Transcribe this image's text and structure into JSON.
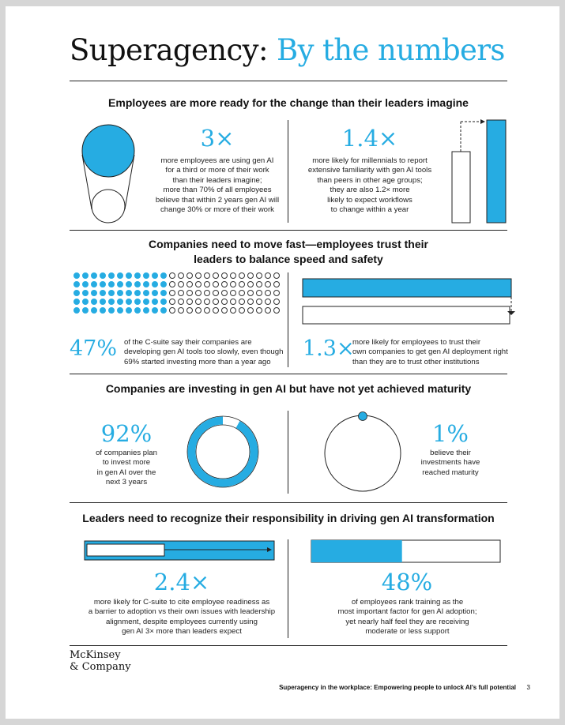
{
  "header": {
    "title_main": "Superagency:",
    "title_accent": "By the numbers"
  },
  "sections": [
    {
      "heading": "Employees are more ready for the change than their leaders imagine",
      "left": {
        "stat": "3×",
        "lines": [
          "more employees are using gen AI",
          "for a third or more of their work",
          "than their leaders imagine;",
          "more than 70% of all employees",
          "believe that within 2 years gen AI will",
          "change 30% or more of their work"
        ]
      },
      "right": {
        "stat": "1.4×",
        "lines": [
          "more likely for millennials to report",
          "extensive familiarity with gen AI tools",
          "than peers in other age groups;",
          "they are also 1.2× more",
          "likely to expect workflows",
          "to change within a year"
        ]
      }
    },
    {
      "heading_lines": [
        "Companies need to move fast—employees trust their",
        "leaders to balance speed and safety"
      ],
      "left": {
        "stat": "47%",
        "lines": [
          "of the C-suite say their companies are",
          "developing gen AI tools too slowly, even though",
          "69% started investing more than a year ago"
        ],
        "dots_filled": 47,
        "dots_total": 100
      },
      "right": {
        "stat": "1.3×",
        "lines": [
          "more likely for employees to trust their",
          "own companies to get gen AI deployment right",
          "than they are to trust other institutions"
        ]
      }
    },
    {
      "heading": "Companies are investing in gen AI but have not yet achieved maturity",
      "left": {
        "stat": "92%",
        "lines": [
          "of companies plan",
          "to invest more",
          "in gen AI over the",
          "next 3 years"
        ],
        "ring_fraction": 0.92
      },
      "right": {
        "stat": "1%",
        "lines": [
          "believe their",
          "investments have",
          "reached maturity"
        ]
      }
    },
    {
      "heading": "Leaders need to recognize their responsibility in driving gen AI transformation",
      "left": {
        "stat": "2.4×",
        "lines": [
          "more likely for C-suite to cite employee readiness as",
          "a barrier to adoption vs their own issues with leadership",
          "alignment, despite employees currently using",
          "gen AI 3× more than leaders expect"
        ]
      },
      "right": {
        "stat": "48%",
        "lines": [
          "of employees rank training as the",
          "most important factor for gen AI adoption;",
          "yet nearly half feel they are receiving",
          "moderate or less support"
        ],
        "bar_fraction": 0.48
      }
    }
  ],
  "footer": {
    "logo_line1": "McKinsey",
    "logo_line2": "& Company",
    "note": "Superagency in the workplace: Empowering people to unlock AI’s full potential",
    "page": "3"
  },
  "colors": {
    "accent": "#26ace2",
    "ink": "#111111"
  }
}
